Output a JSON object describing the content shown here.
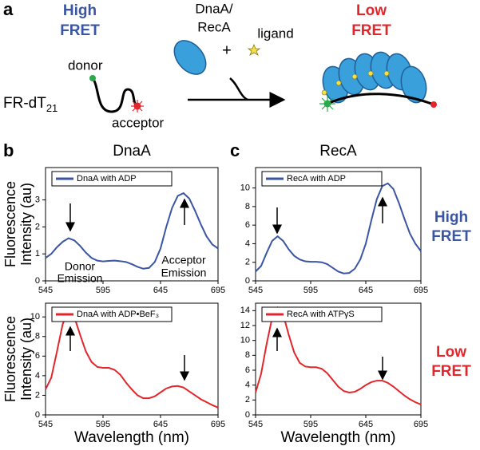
{
  "panel_labels": [
    "a",
    "b",
    "c"
  ],
  "schematic": {
    "high": [
      "High",
      "FRET"
    ],
    "low": [
      "Low",
      "FRET"
    ],
    "protein": [
      "DnaA/",
      "RecA"
    ],
    "plus": "+",
    "ligand": "ligand",
    "donor": "donor",
    "acceptor": "acceptor",
    "substrate": "FR-dT",
    "substrate_sub": "21"
  },
  "side_labels": {
    "high": [
      "High",
      "FRET"
    ],
    "low": [
      "Low",
      "FRET"
    ]
  },
  "chart_data": [
    {
      "type": "line",
      "title": "DnaA",
      "ylabel": [
        "Fluorescence",
        "Intensity (au)"
      ],
      "annotations": [
        "Donor",
        "Emission",
        "Acceptor",
        "Emission"
      ],
      "x": [
        545,
        550,
        555,
        560,
        565,
        570,
        575,
        580,
        585,
        590,
        595,
        600,
        605,
        610,
        615,
        620,
        625,
        630,
        635,
        640,
        645,
        650,
        655,
        660,
        665,
        670,
        675,
        680,
        685,
        690,
        695
      ],
      "series": [
        {
          "name": "DnaA with ADP",
          "color": "#3a55a4",
          "values": [
            0.85,
            1.0,
            1.25,
            1.45,
            1.58,
            1.5,
            1.3,
            1.05,
            0.85,
            0.75,
            0.72,
            0.74,
            0.75,
            0.73,
            0.7,
            0.62,
            0.52,
            0.45,
            0.48,
            0.7,
            1.2,
            2.0,
            2.7,
            3.15,
            3.25,
            3.05,
            2.6,
            2.1,
            1.65,
            1.35,
            1.2
          ]
        }
      ],
      "xlim": [
        545,
        695
      ],
      "xticks": [
        545,
        595,
        645,
        695
      ],
      "ylim": [
        0,
        4.2
      ],
      "yticks": [
        0,
        1,
        2,
        3
      ]
    },
    {
      "type": "line",
      "title": "RecA",
      "x": [
        545,
        550,
        555,
        560,
        565,
        570,
        575,
        580,
        585,
        590,
        595,
        600,
        605,
        610,
        615,
        620,
        625,
        630,
        635,
        640,
        645,
        650,
        655,
        660,
        665,
        670,
        675,
        680,
        685,
        690,
        695
      ],
      "series": [
        {
          "name": "RecA with ADP",
          "color": "#3a55a4",
          "values": [
            1.0,
            1.6,
            3.0,
            4.3,
            4.8,
            4.3,
            3.4,
            2.7,
            2.3,
            2.1,
            2.05,
            2.05,
            2.0,
            1.8,
            1.4,
            1.0,
            0.8,
            0.85,
            1.3,
            2.3,
            4.0,
            6.5,
            8.8,
            10.2,
            10.5,
            9.9,
            8.4,
            6.7,
            5.1,
            4.0,
            3.2
          ]
        }
      ],
      "xlim": [
        545,
        695
      ],
      "xticks": [
        545,
        595,
        645,
        695
      ],
      "ylim": [
        0,
        12.2
      ],
      "yticks": [
        0,
        2,
        4,
        6,
        8,
        10
      ]
    },
    {
      "type": "line",
      "ylabel": [
        "Fluorescence",
        "Intensity (au)"
      ],
      "xlabel": "Wavelength (nm)",
      "x": [
        545,
        550,
        555,
        560,
        565,
        570,
        575,
        580,
        585,
        590,
        595,
        600,
        605,
        610,
        615,
        620,
        625,
        630,
        635,
        640,
        645,
        650,
        655,
        660,
        665,
        670,
        675,
        680,
        685,
        690,
        695
      ],
      "series": [
        {
          "name": "DnaA with ADP•BeF₃",
          "color": "#e3262b",
          "values": [
            2.6,
            3.8,
            6.5,
            9.3,
            10.6,
            10.0,
            8.2,
            6.5,
            5.4,
            4.9,
            4.8,
            4.8,
            4.6,
            4.1,
            3.3,
            2.6,
            2.0,
            1.7,
            1.7,
            1.9,
            2.3,
            2.7,
            2.9,
            2.95,
            2.8,
            2.4,
            2.0,
            1.6,
            1.3,
            1.0,
            0.75
          ]
        }
      ],
      "xlim": [
        545,
        695
      ],
      "xticks": [
        545,
        595,
        645,
        695
      ],
      "ylim": [
        0,
        11.4
      ],
      "yticks": [
        0,
        2,
        4,
        6,
        8,
        10
      ]
    },
    {
      "type": "line",
      "xlabel": "Wavelength (nm)",
      "x": [
        545,
        550,
        555,
        560,
        565,
        570,
        575,
        580,
        585,
        590,
        595,
        600,
        605,
        610,
        615,
        620,
        625,
        630,
        635,
        640,
        645,
        650,
        655,
        660,
        665,
        670,
        675,
        680,
        685,
        690,
        695
      ],
      "series": [
        {
          "name": "RecA with ATPγS",
          "color": "#e3262b",
          "values": [
            3.0,
            5.5,
            9.5,
            13.0,
            14.4,
            13.5,
            10.8,
            8.4,
            7.0,
            6.5,
            6.4,
            6.4,
            6.2,
            5.6,
            4.7,
            3.8,
            3.2,
            3.0,
            3.1,
            3.5,
            4.0,
            4.4,
            4.6,
            4.6,
            4.3,
            3.8,
            3.2,
            2.6,
            2.1,
            1.7,
            1.4
          ]
        }
      ],
      "xlim": [
        545,
        695
      ],
      "xticks": [
        545,
        595,
        645,
        695
      ],
      "ylim": [
        0,
        15
      ],
      "yticks": [
        0,
        2,
        4,
        6,
        8,
        10,
        12,
        14
      ]
    }
  ]
}
